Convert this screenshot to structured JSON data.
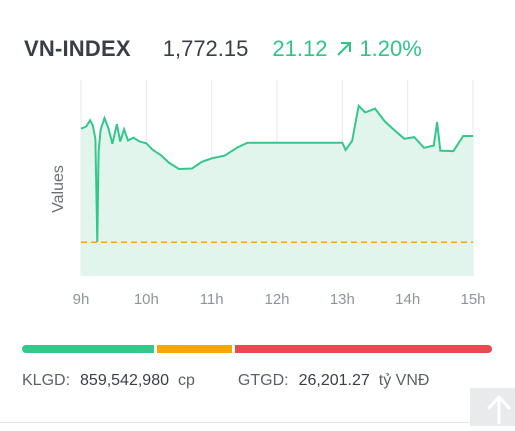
{
  "index": {
    "name": "VN-INDEX",
    "value": "1,772.15",
    "change": "21.12",
    "change_pct": "1.20%",
    "direction_icon": "arrow-up-right-icon",
    "up_color": "#2ec58a"
  },
  "chart_data": {
    "type": "area",
    "ylabel": "Values",
    "x_ticks": [
      "9h",
      "10h",
      "11h",
      "12h",
      "13h",
      "14h",
      "15h"
    ],
    "reference_value": 1751.03,
    "reference_line": "dashed",
    "ylim": [
      1745,
      1780
    ],
    "series": [
      {
        "values": [
          [
            9.0,
            1771.3
          ],
          [
            9.08,
            1771.7
          ],
          [
            9.14,
            1772.8
          ],
          [
            9.18,
            1771.9
          ],
          [
            9.22,
            1769.5
          ],
          [
            9.25,
            1751.1
          ],
          [
            9.27,
            1767.2
          ],
          [
            9.3,
            1771.1
          ],
          [
            9.36,
            1773.2
          ],
          [
            9.42,
            1771.4
          ],
          [
            9.48,
            1768.6
          ],
          [
            9.55,
            1772.1
          ],
          [
            9.6,
            1769.0
          ],
          [
            9.66,
            1771.2
          ],
          [
            9.72,
            1769.2
          ],
          [
            9.8,
            1769.7
          ],
          [
            9.9,
            1769.0
          ],
          [
            10.0,
            1768.7
          ],
          [
            10.1,
            1767.5
          ],
          [
            10.22,
            1766.6
          ],
          [
            10.35,
            1765.2
          ],
          [
            10.5,
            1764.1
          ],
          [
            10.7,
            1764.2
          ],
          [
            10.85,
            1765.4
          ],
          [
            11.0,
            1766.0
          ],
          [
            11.2,
            1766.5
          ],
          [
            11.4,
            1768.0
          ],
          [
            11.55,
            1768.8
          ],
          [
            12.0,
            1768.8
          ],
          [
            12.5,
            1768.8
          ],
          [
            13.0,
            1768.8
          ],
          [
            13.05,
            1767.5
          ],
          [
            13.15,
            1769.1
          ],
          [
            13.25,
            1775.4
          ],
          [
            13.35,
            1774.2
          ],
          [
            13.5,
            1774.9
          ],
          [
            13.65,
            1772.6
          ],
          [
            13.8,
            1771.0
          ],
          [
            13.95,
            1769.5
          ],
          [
            14.1,
            1769.8
          ],
          [
            14.25,
            1767.9
          ],
          [
            14.4,
            1768.3
          ],
          [
            14.45,
            1772.5
          ],
          [
            14.5,
            1767.4
          ],
          [
            14.7,
            1767.3
          ],
          [
            14.85,
            1770.0
          ],
          [
            15.0,
            1770.0
          ]
        ]
      }
    ]
  },
  "breadth": {
    "advancers": 290,
    "unchanged": 167,
    "decliners": 565,
    "colors": {
      "up": "#32c98b",
      "flat": "#f5a800",
      "down": "#e84b4f"
    }
  },
  "stats": {
    "volume_label": "KLGD:",
    "volume_value": "859,542,980",
    "volume_unit": "cp",
    "value_label": "GTGD:",
    "value_value": "26,201.27",
    "value_unit": "tỷ VNĐ"
  },
  "scroll_top": {
    "icon": "arrow-up-icon"
  }
}
